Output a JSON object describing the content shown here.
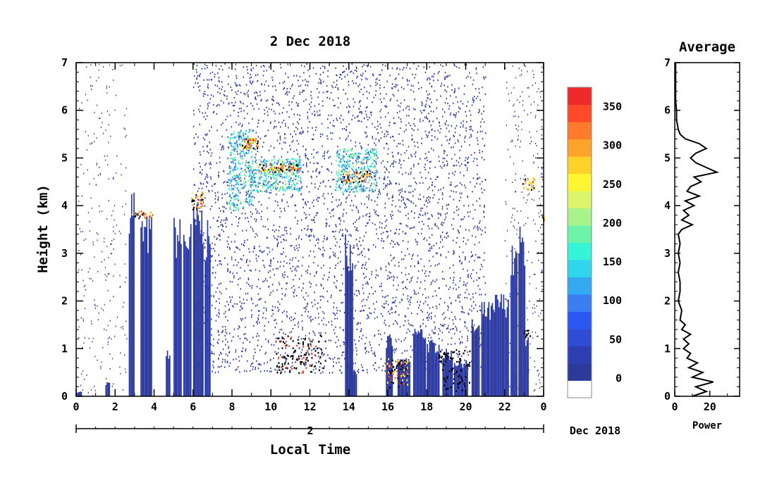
{
  "chart_data": [
    {
      "type": "heatmap",
      "title": "2 Dec 2018",
      "xlabel": "Local Time",
      "ylabel": "Height (km)",
      "x_ticks": [
        "0",
        "2",
        "4",
        "6",
        "8",
        "10",
        "12",
        "14",
        "16",
        "18",
        "20",
        "22",
        "0"
      ],
      "y_ticks": [
        "0",
        "1",
        "2",
        "3",
        "4",
        "5",
        "6",
        "7"
      ],
      "xlim": [
        0,
        24
      ],
      "ylim": [
        0,
        7
      ],
      "date_bar_label": "2",
      "date_suffix": "Dec 2018",
      "colorbar": {
        "ticks": [
          "0",
          "50",
          "100",
          "150",
          "200",
          "250",
          "300",
          "350"
        ],
        "range": [
          -25,
          375
        ],
        "colors": [
          "#ffffff",
          "#2e3a9a",
          "#2d3fb2",
          "#2f4cd4",
          "#2b58f0",
          "#3a7ef2",
          "#34a8f0",
          "#2fd6ee",
          "#36f4d8",
          "#6ef4a8",
          "#a9f48a",
          "#dcf56a",
          "#fff530",
          "#ffd22a",
          "#ffa42a",
          "#ff7a2a",
          "#ff4a2a",
          "#ee2a2a"
        ]
      },
      "features": [
        {
          "layer": "boundary-layer-echo",
          "x": [
            0,
            24
          ],
          "y": [
            0,
            3.8
          ]
        },
        {
          "layer": "cloud-base-band",
          "x": [
            7.8,
            15.5
          ],
          "y": [
            3.9,
            5.6
          ]
        },
        {
          "layer": "high-reflectivity",
          "x": [
            8.2,
            15.3
          ],
          "y": [
            4.6,
            5.4
          ]
        },
        {
          "layer": "low-clouds",
          "x": [
            10,
            21
          ],
          "y": [
            0.1,
            1.5
          ]
        }
      ]
    },
    {
      "type": "line",
      "title": "Average",
      "xlabel": "Power",
      "ylabel": "",
      "x_ticks": [
        "0",
        "20"
      ],
      "y_ticks": [
        "0",
        "1",
        "2",
        "3",
        "4",
        "5",
        "6",
        "7"
      ],
      "xlim": [
        0,
        37
      ],
      "ylim": [
        0,
        7
      ],
      "series": [
        {
          "height_km": [
            0,
            0.1,
            0.2,
            0.3,
            0.4,
            0.5,
            0.6,
            0.7,
            0.8,
            0.9,
            1.0,
            1.1,
            1.2,
            1.3,
            1.4,
            1.5,
            1.6,
            1.8,
            2.0,
            2.2,
            2.4,
            2.6,
            2.8,
            3.0,
            3.2,
            3.4,
            3.5,
            3.6,
            3.7,
            3.8,
            3.9,
            4.0,
            4.1,
            4.2,
            4.3,
            4.4,
            4.5,
            4.6,
            4.7,
            4.8,
            4.9,
            5.0,
            5.1,
            5.2,
            5.3,
            5.4,
            5.5,
            5.6,
            5.8,
            6.0,
            6.2,
            6.5,
            7.0
          ],
          "power": [
            10,
            18,
            12,
            22,
            10,
            16,
            8,
            13,
            7,
            9,
            5,
            8,
            5,
            9,
            4,
            6,
            3,
            4,
            2,
            3,
            3,
            2,
            3,
            2,
            3,
            2,
            4,
            10,
            4,
            8,
            5,
            11,
            6,
            14,
            7,
            9,
            15,
            11,
            24,
            18,
            12,
            9,
            12,
            18,
            14,
            6,
            3,
            2,
            1,
            1,
            0.5,
            0.5,
            0.5
          ]
        }
      ]
    }
  ]
}
